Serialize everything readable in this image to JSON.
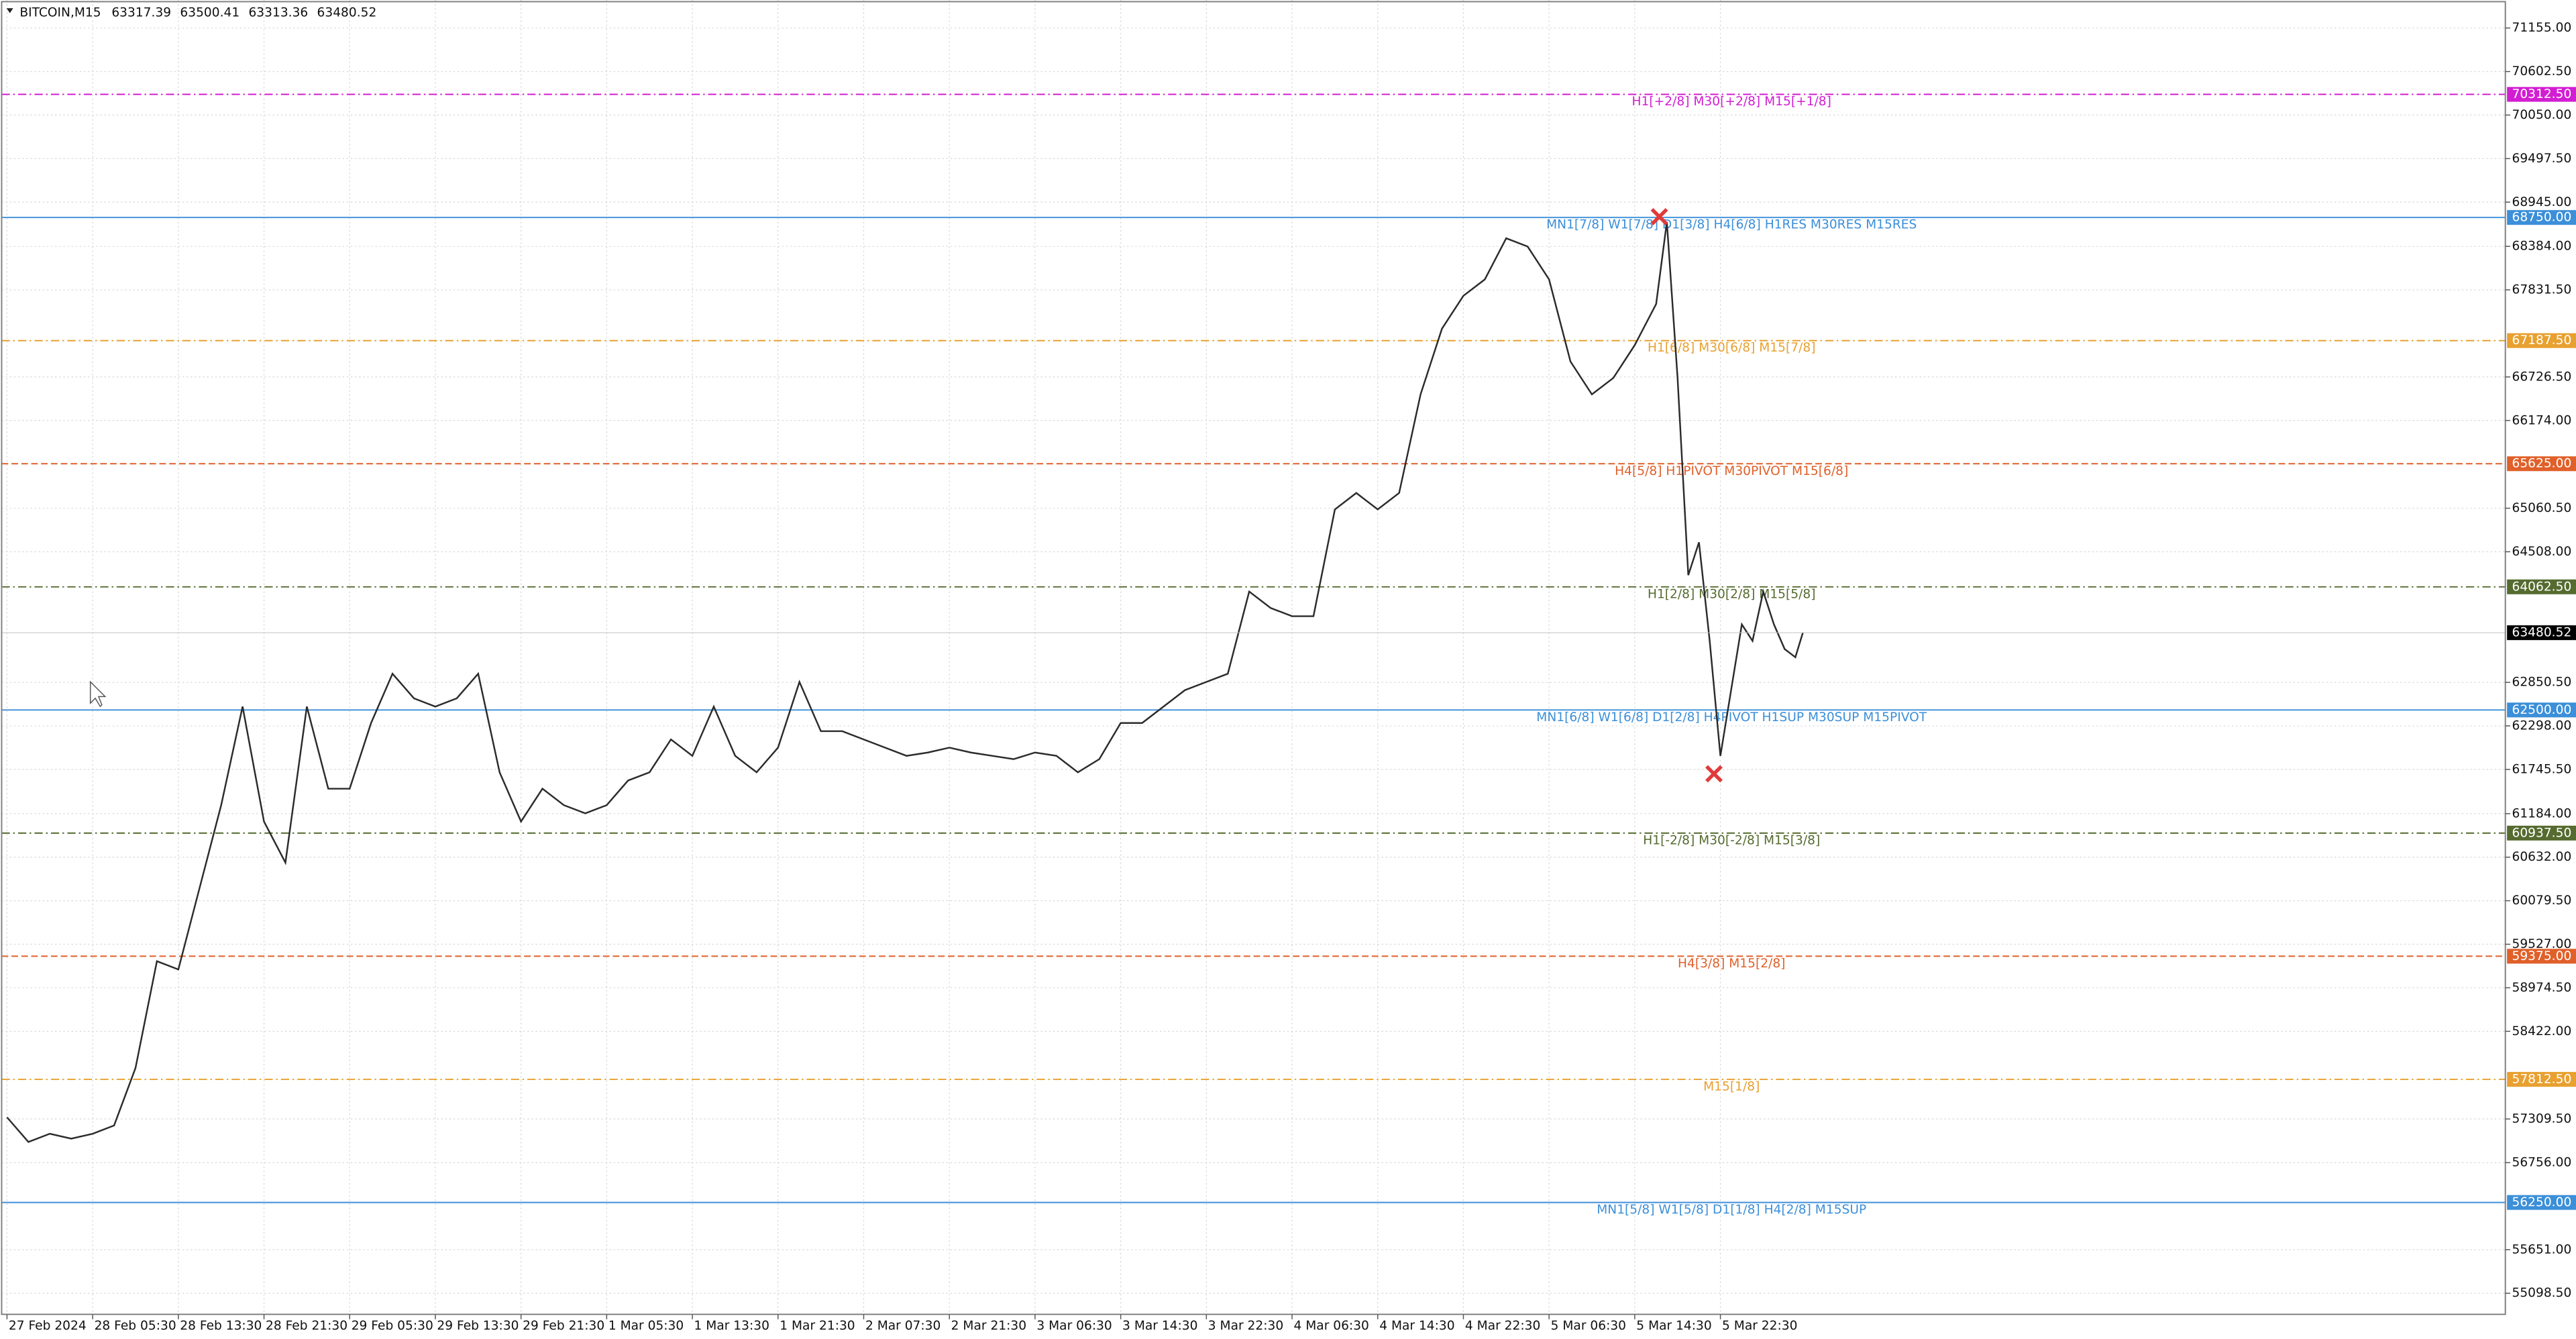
{
  "chart_data": {
    "type": "line",
    "title": "BITCOIN,M15",
    "ohlc": [
      63317.39,
      63500.41,
      63313.36,
      63480.52
    ],
    "xlim": [
      -0.5,
      233.3
    ],
    "ylim": [
      54830,
      71510
    ],
    "grid": true,
    "xticks": [
      {
        "value": 0,
        "label": "27 Feb 2024"
      },
      {
        "value": 8,
        "label": "28 Feb 05:30"
      },
      {
        "value": 16,
        "label": "28 Feb 13:30"
      },
      {
        "value": 24,
        "label": "28 Feb 21:30"
      },
      {
        "value": 32,
        "label": "29 Feb 05:30"
      },
      {
        "value": 40,
        "label": "29 Feb 13:30"
      },
      {
        "value": 48,
        "label": "29 Feb 21:30"
      },
      {
        "value": 56,
        "label": "1 Mar 05:30"
      },
      {
        "value": 64,
        "label": "1 Mar 13:30"
      },
      {
        "value": 72,
        "label": "1 Mar 21:30"
      },
      {
        "value": 80,
        "label": "2 Mar 07:30"
      },
      {
        "value": 88,
        "label": "2 Mar 21:30"
      },
      {
        "value": 96,
        "label": "3 Mar 06:30"
      },
      {
        "value": 104,
        "label": "3 Mar 14:30"
      },
      {
        "value": 112,
        "label": "3 Mar 22:30"
      },
      {
        "value": 120,
        "label": "4 Mar 06:30"
      },
      {
        "value": 128,
        "label": "4 Mar 14:30"
      },
      {
        "value": 136,
        "label": "4 Mar 22:30"
      },
      {
        "value": 144,
        "label": "5 Mar 06:30"
      },
      {
        "value": 152,
        "label": "5 Mar 14:30"
      },
      {
        "value": 160,
        "label": "5 Mar 22:30"
      }
    ],
    "yticks": [
      {
        "value": 71155,
        "label": "71155.00"
      },
      {
        "value": 70602.5,
        "label": "70602.50"
      },
      {
        "value": 70050,
        "label": "70050.00"
      },
      {
        "value": 69497.5,
        "label": "69497.50"
      },
      {
        "value": 68945,
        "label": "68945.00"
      },
      {
        "value": 68384,
        "label": "68384.00"
      },
      {
        "value": 67831.5,
        "label": "67831.50"
      },
      {
        "value": 66726.5,
        "label": "66726.50"
      },
      {
        "value": 66174,
        "label": "66174.00"
      },
      {
        "value": 65060.5,
        "label": "65060.50"
      },
      {
        "value": 64508,
        "label": "64508.00"
      },
      {
        "value": 62850.5,
        "label": "62850.50"
      },
      {
        "value": 62298,
        "label": "62298.00"
      },
      {
        "value": 61745.5,
        "label": "61745.50"
      },
      {
        "value": 61184,
        "label": "61184.00"
      },
      {
        "value": 60632,
        "label": "60632.00"
      },
      {
        "value": 60079.5,
        "label": "60079.50"
      },
      {
        "value": 59527,
        "label": "59527.00"
      },
      {
        "value": 58974.5,
        "label": "58974.50"
      },
      {
        "value": 58422,
        "label": "58422.00"
      },
      {
        "value": 57309.5,
        "label": "57309.50"
      },
      {
        "value": 56756,
        "label": "56756.00"
      },
      {
        "value": 55651,
        "label": "55651.00"
      },
      {
        "value": 55098.5,
        "label": "55098.50"
      }
    ],
    "x": [
      0,
      2,
      4,
      6,
      8,
      10,
      12,
      14,
      16,
      18,
      20,
      22,
      24,
      26,
      28,
      30,
      32,
      34,
      36,
      38,
      40,
      42,
      44,
      46,
      48,
      50,
      52,
      54,
      56,
      58,
      60,
      62,
      64,
      66,
      68,
      70,
      72,
      74,
      76,
      78,
      80,
      82,
      84,
      86,
      88,
      90,
      92,
      94,
      96,
      98,
      100,
      102,
      104,
      106,
      108,
      110,
      112,
      114,
      116,
      118,
      120,
      122,
      124,
      126,
      128,
      130,
      132,
      134,
      136,
      138,
      140,
      142,
      144,
      146,
      148,
      150,
      152,
      154,
      155,
      156,
      157,
      158,
      159,
      160,
      161,
      162,
      163,
      164,
      165,
      166,
      167,
      167.7
    ],
    "series": [
      {
        "color": "#2b2b2b",
        "values": [
          57331,
          57018,
          57122,
          57060,
          57122,
          57227,
          57956,
          59312,
          59207,
          60250,
          61292,
          62543,
          61084,
          60563,
          62543,
          61501,
          61501,
          62335,
          62960,
          62648,
          62543,
          62648,
          62960,
          61709,
          61084,
          61501,
          61292,
          61188,
          61292,
          61605,
          61709,
          62126,
          61918,
          62543,
          61918,
          61709,
          62022,
          62856,
          62231,
          62231,
          62126,
          62022,
          61918,
          61960,
          62022,
          61960,
          61918,
          61876,
          61960,
          61918,
          61709,
          61876,
          62335,
          62335,
          62543,
          62752,
          62856,
          62960,
          64003,
          63794,
          63690,
          63690,
          65045,
          65254,
          65045,
          65254,
          66505,
          67339,
          67756,
          67964,
          68486,
          68381,
          67964,
          66922,
          66505,
          66713,
          67130,
          67652,
          68694,
          66713,
          64211,
          64628,
          63377,
          61918,
          62752,
          63586,
          63377,
          64003,
          63586,
          63273,
          63169,
          63480.52
        ]
      }
    ],
    "markers": {
      "color": "#e03a3a",
      "x": [
        154.3,
        159.4
      ],
      "values": [
        68760,
        61690
      ]
    },
    "levels": [
      {
        "name": "H1[+2/8] M30[+2/8] M15[+1/8]",
        "color": "#d21ed2",
        "style": "dashdot",
        "value": 70312.5,
        "value_label": "70312.50"
      },
      {
        "name": "MN1[7/8] W1[7/8] D1[3/8] H4[6/8] H1RES M30RES M15RES",
        "color": "#3c8fd8",
        "style": "solid",
        "value": 68750,
        "value_label": "68750.00"
      },
      {
        "name": "H1[6/8] M30[6/8] M15[7/8]",
        "color": "#e8a030",
        "style": "dashdot",
        "value": 67187.5,
        "value_label": "67187.50"
      },
      {
        "name": "H4[5/8] H1PIVOT M30PIVOT M15[6/8]",
        "color": "#e0602a",
        "style": "dashed",
        "value": 65625,
        "value_label": "65625.00"
      },
      {
        "name": "H1[2/8] M30[2/8] M15[5/8]",
        "color": "#556b2f",
        "style": "dashdot",
        "value": 64062.5,
        "value_label": "64062.50"
      },
      {
        "name": "MN1[6/8] W1[6/8] D1[2/8] H4PIVOT H1SUP M30SUP M15PIVOT",
        "color": "#3c8fd8",
        "style": "solid",
        "value": 62500,
        "value_label": "62500.00"
      },
      {
        "name": "H1[-2/8] M30[-2/8] M15[3/8]",
        "color": "#556b2f",
        "style": "dashdot",
        "value": 60937.5,
        "value_label": "60937.50"
      },
      {
        "name": "H4[3/8] M15[2/8]",
        "color": "#e0602a",
        "style": "dashed",
        "value": 59375,
        "value_label": "59375.00"
      },
      {
        "name": "M15[1/8]",
        "color": "#e8a030",
        "style": "dashdot",
        "value": 57812.5,
        "value_label": "57812.50"
      },
      {
        "name": "MN1[5/8] W1[5/8] D1[1/8] H4[2/8] M15SUP",
        "color": "#3c8fd8",
        "style": "solid",
        "value": 56250,
        "value_label": "56250.00"
      }
    ]
  }
}
